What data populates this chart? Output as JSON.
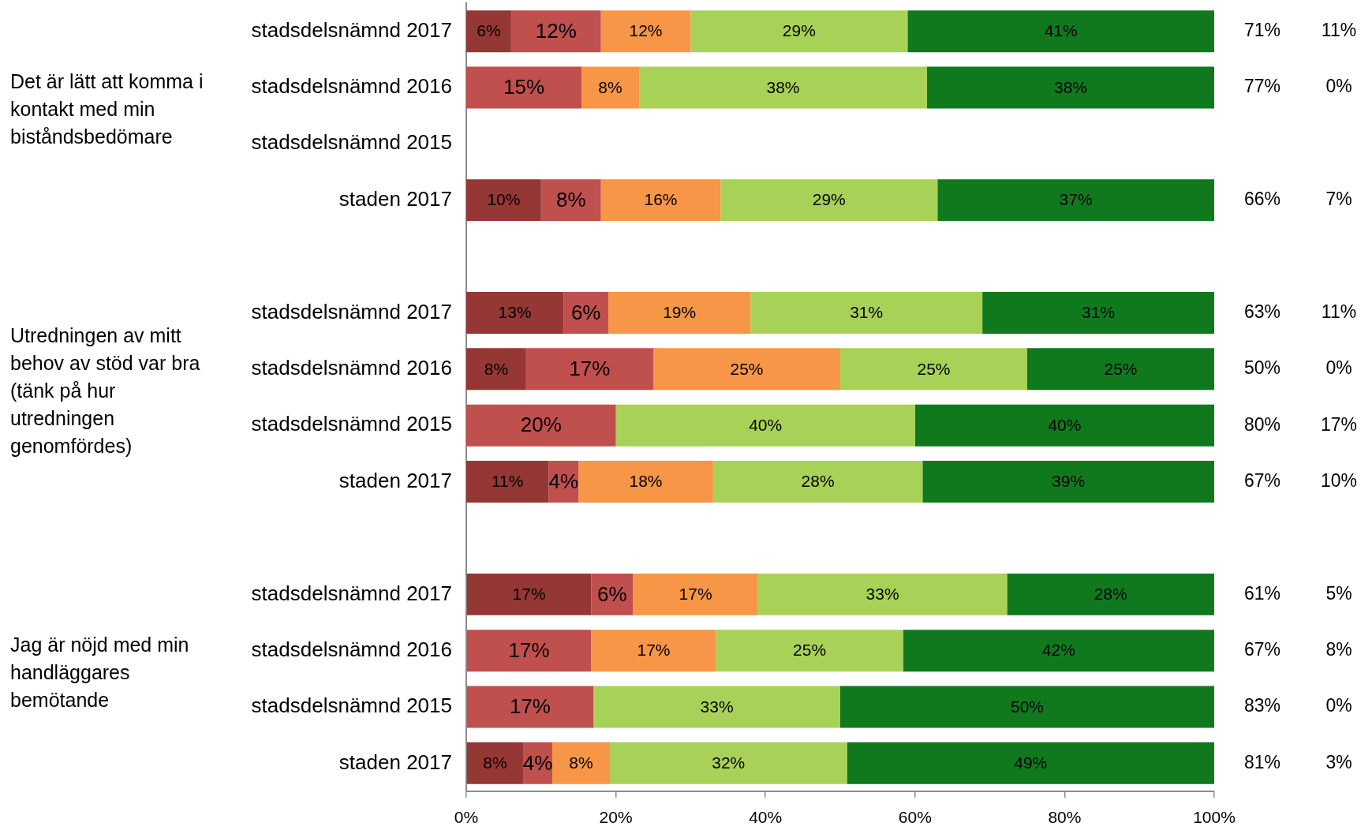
{
  "chart_data": [
    {
      "type": "bar",
      "orientation": "horizontal",
      "stacked": true,
      "title": "Det är lätt att komma i kontakt med min biståndsbedömare",
      "categories": [
        "stadsdelsnämnd 2017",
        "stadsdelsnämnd 2016",
        "stadsdelsnämnd 2015",
        "staden 2017"
      ],
      "series": [
        {
          "color": "#953735",
          "values": [
            6,
            null,
            null,
            10
          ],
          "value_labels": [
            "6%",
            null,
            null,
            "10%"
          ]
        },
        {
          "color": "#c0504d",
          "values": [
            12,
            15.4,
            null,
            8
          ],
          "value_labels": [
            "12%",
            "15%",
            null,
            "8%"
          ]
        },
        {
          "color": "#f79646",
          "values": [
            12,
            7.7,
            null,
            16
          ],
          "value_labels": [
            "12%",
            "8%",
            null,
            "16%"
          ]
        },
        {
          "color": "#a8d158",
          "values": [
            29,
            38.5,
            null,
            29
          ],
          "value_labels": [
            "29%",
            "38%",
            null,
            "29%"
          ]
        },
        {
          "color": "#10791e",
          "values": [
            41,
            38.4,
            null,
            37
          ],
          "value_labels": [
            "41%",
            "38%",
            null,
            "37%"
          ]
        }
      ],
      "xlim": [
        0,
        100
      ],
      "tick_labels": "y",
      "annotations": [
        "71%",
        "11%",
        "77%",
        "0%",
        "66%",
        "7%"
      ]
    },
    {
      "type": "bar",
      "orientation": "horizontal",
      "stacked": true,
      "title": "Utredningen av mitt behov av stöd var bra (tänk på hur utredningen genomfördes)",
      "categories": [
        "stadsdelsnämnd 2017",
        "stadsdelsnämnd 2016",
        "stadsdelsnämnd 2015",
        "staden 2017"
      ],
      "series": [
        {
          "color": "#953735",
          "values": [
            13,
            8,
            null,
            11
          ],
          "value_labels": [
            "13%",
            "8%",
            null,
            "11%"
          ]
        },
        {
          "color": "#c0504d",
          "values": [
            6,
            17,
            20,
            4
          ],
          "value_labels": [
            "6%",
            "17%",
            "20%",
            "4%"
          ]
        },
        {
          "color": "#f79646",
          "values": [
            19,
            25,
            null,
            18
          ],
          "value_labels": [
            "19%",
            "25%",
            null,
            "18%"
          ]
        },
        {
          "color": "#a8d158",
          "values": [
            31,
            25,
            40,
            28
          ],
          "value_labels": [
            "31%",
            "25%",
            "40%",
            "28%"
          ]
        },
        {
          "color": "#10791e",
          "values": [
            31,
            25,
            40,
            39
          ],
          "value_labels": [
            "31%",
            "25%",
            "40%",
            "39%"
          ]
        }
      ],
      "xlim": [
        0,
        100
      ],
      "tick_labels": "y",
      "annotations": [
        "63%",
        "11%",
        "50%",
        "0%",
        "80%",
        "17%",
        "67%",
        "10%"
      ]
    },
    {
      "type": "bar",
      "orientation": "horizontal",
      "stacked": true,
      "title": "Jag är nöjd med min handläggares bemötande",
      "categories": [
        "stadsdelsnämnd 2017",
        "stadsdelsnämnd 2016",
        "stadsdelsnämnd 2015",
        "staden 2017"
      ],
      "series": [
        {
          "color": "#953735",
          "values": [
            16.7,
            null,
            null,
            7.6
          ],
          "value_labels": [
            "17%",
            null,
            null,
            "8%"
          ]
        },
        {
          "color": "#c0504d",
          "values": [
            5.6,
            16.7,
            17,
            3.9
          ],
          "value_labels": [
            "6%",
            "17%",
            "17%",
            "4%"
          ]
        },
        {
          "color": "#f79646",
          "values": [
            16.7,
            16.7,
            null,
            7.7
          ],
          "value_labels": [
            "17%",
            "17%",
            null,
            "8%"
          ]
        },
        {
          "color": "#a8d158",
          "values": [
            33.3,
            25,
            33,
            31.7
          ],
          "value_labels": [
            "33%",
            "25%",
            "33%",
            "32%"
          ]
        },
        {
          "color": "#10791e",
          "values": [
            27.7,
            41.6,
            50,
            49.1
          ],
          "value_labels": [
            "28%",
            "42%",
            "50%",
            "49%"
          ]
        }
      ],
      "xlim": [
        0,
        100
      ],
      "xticks": [
        {
          "value": 0,
          "label": "0%"
        },
        {
          "value": 20,
          "label": "20%"
        },
        {
          "value": 40,
          "label": "40%"
        },
        {
          "value": 60,
          "label": "60%"
        },
        {
          "value": 80,
          "label": "80%"
        },
        {
          "value": 100,
          "label": "100%"
        }
      ],
      "annotations": [
        "61%",
        "5%",
        "67%",
        "8%",
        "83%",
        "0%",
        "81%",
        "3%"
      ]
    }
  ]
}
